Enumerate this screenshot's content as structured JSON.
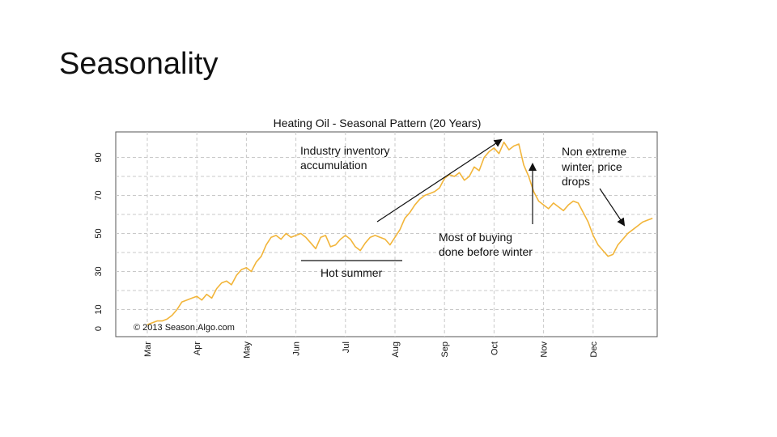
{
  "slide": {
    "title": "Seasonality"
  },
  "chart_data": {
    "type": "line",
    "title": "Heating Oil - Seasonal Pattern (20 Years)",
    "copyright": "© 2013 Season.Algo.com",
    "xlabel": "",
    "ylabel": "",
    "x_tick_labels": [
      "Mar",
      "Apr",
      "May",
      "Jun",
      "Jul",
      "Aug",
      "Sep",
      "Oct",
      "Nov",
      "Dec"
    ],
    "xlim": [
      0,
      10.3
    ],
    "ylim": [
      0,
      100
    ],
    "y_ticks": [
      0,
      10,
      30,
      50,
      70,
      90
    ],
    "grid": true,
    "line_color": "#f2b53a",
    "series": [
      {
        "x": [
          0.0,
          0.1,
          0.2,
          0.3,
          0.4,
          0.5,
          0.6,
          0.7,
          0.8,
          0.9,
          1.0,
          1.1,
          1.2,
          1.3,
          1.4,
          1.5,
          1.6,
          1.7,
          1.8,
          1.9,
          2.0,
          2.1,
          2.2,
          2.3,
          2.4,
          2.5,
          2.6,
          2.7,
          2.8,
          2.9,
          3.0,
          3.1,
          3.2,
          3.3,
          3.4,
          3.5,
          3.6,
          3.7,
          3.8,
          3.9,
          4.0,
          4.1,
          4.2,
          4.3,
          4.4,
          4.5,
          4.6,
          4.7,
          4.8,
          4.9,
          5.0,
          5.1,
          5.2,
          5.3,
          5.4,
          5.5,
          5.6,
          5.7,
          5.8,
          5.9,
          6.0,
          6.1,
          6.2,
          6.3,
          6.4,
          6.5,
          6.6,
          6.7,
          6.8,
          6.9,
          7.0,
          7.1,
          7.2,
          7.3,
          7.4,
          7.5,
          7.6,
          7.7,
          7.8,
          7.9,
          8.0,
          8.1,
          8.2,
          8.3,
          8.4,
          8.5,
          8.6,
          8.7,
          8.8,
          8.9,
          9.0,
          9.1,
          9.2,
          9.3,
          9.4,
          9.5,
          9.6,
          9.7,
          9.8,
          9.9,
          10.0,
          10.1,
          10.2
        ],
        "y": [
          2,
          3,
          4,
          4,
          5,
          7,
          10,
          14,
          15,
          16,
          17,
          15,
          18,
          16,
          21,
          24,
          25,
          23,
          28,
          31,
          32,
          30,
          35,
          38,
          44,
          48,
          49,
          47,
          50,
          48,
          49,
          50,
          48,
          45,
          42,
          48,
          49,
          43,
          44,
          47,
          49,
          47,
          43,
          41,
          45,
          48,
          49,
          48,
          47,
          44,
          48,
          52,
          58,
          61,
          65,
          68,
          70,
          71,
          72,
          74,
          79,
          81,
          80,
          82,
          78,
          80,
          85,
          83,
          90,
          93,
          95,
          92,
          98,
          94,
          96,
          97,
          86,
          80,
          72,
          67,
          65,
          63,
          66,
          64,
          62,
          65,
          67,
          66,
          61,
          56,
          49,
          44,
          41,
          38,
          39,
          44,
          47,
          50,
          52,
          54,
          56,
          57,
          58
        ]
      }
    ],
    "annotations": [
      {
        "text_lines": [
          "Industry inventory",
          "accumulation"
        ]
      },
      {
        "text_lines": [
          "Hot summer"
        ]
      },
      {
        "text_lines": [
          "Most of buying",
          "done before winter"
        ]
      },
      {
        "text_lines": [
          "Non extreme",
          "winter, price",
          "drops"
        ]
      }
    ]
  }
}
